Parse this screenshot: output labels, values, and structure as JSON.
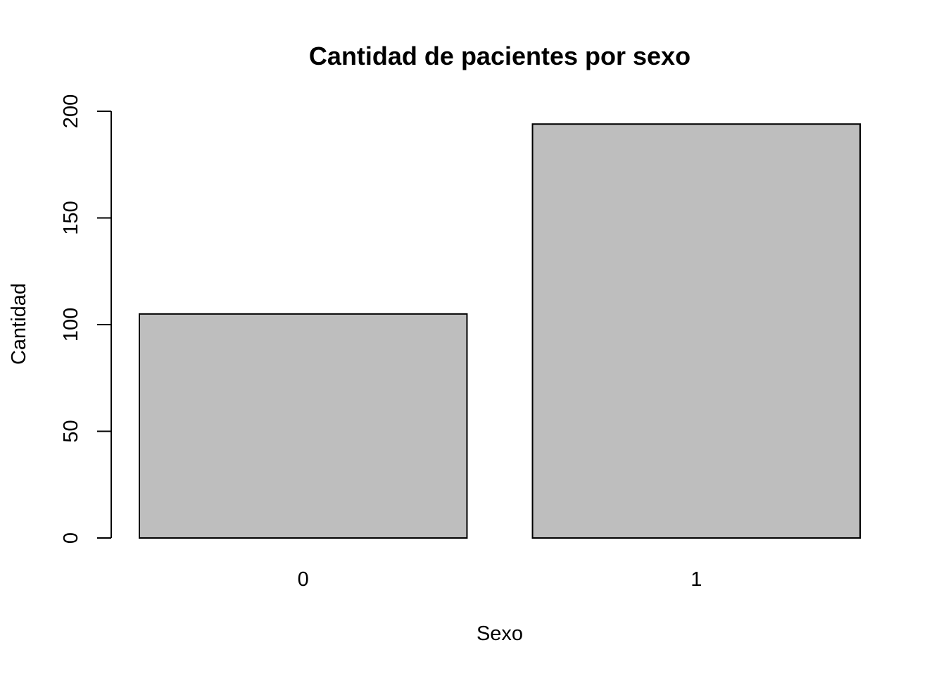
{
  "chart_data": {
    "type": "bar",
    "title": "Cantidad de pacientes por sexo",
    "xlabel": "Sexo",
    "ylabel": "Cantidad",
    "categories": [
      "0",
      "1"
    ],
    "values": [
      105,
      194
    ],
    "ylim": [
      0,
      200
    ],
    "yticks": [
      0,
      50,
      100,
      150,
      200
    ],
    "bar_color": "#bebebe",
    "grid": false,
    "legend": "none"
  }
}
